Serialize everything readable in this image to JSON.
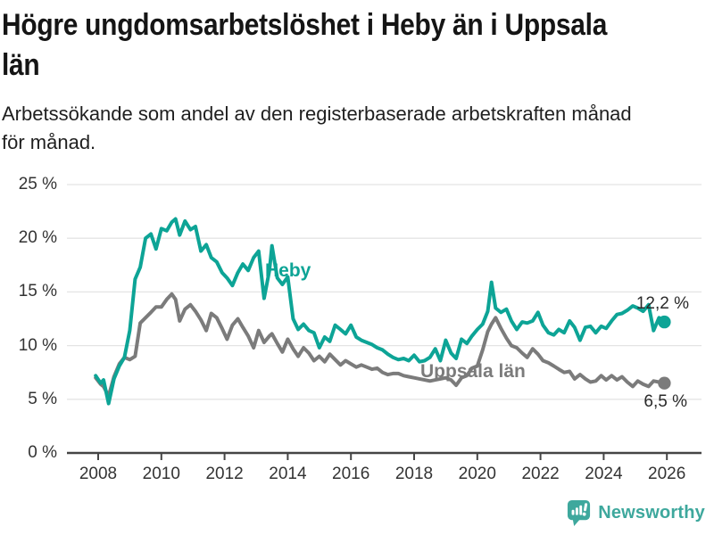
{
  "header": {
    "title": "Högre ungdomsarbetslöshet i Heby än i Uppsala\nlän",
    "subtitle": "Arbetssökande som andel av den registerbaserade arbetskraften månad\nför månad."
  },
  "footer": {
    "brand": "Newsworthy"
  },
  "colors": {
    "heby_teal": "#0da496",
    "uppsala_gray": "#7b7b7b",
    "axis_text": "#333333",
    "gridline": "#e4e4e4",
    "axis_line": "#454545",
    "end_label_text": "#2a2a2a",
    "logo_teal": "#3ea89d",
    "background": "#ffffff"
  },
  "chart_data": {
    "type": "line",
    "title": "Högre ungdomsarbetslöshet i Heby än i Uppsala län",
    "subtitle": "Arbetssökande som andel av den registerbaserade arbetskraften månad för månad.",
    "ylabel": "",
    "xlabel": "",
    "ylim": [
      0,
      25
    ],
    "xlim": [
      2007.9,
      2026.6
    ],
    "grid": "horizontal",
    "legend": "inline-labels",
    "ytick_values": [
      0,
      5,
      10,
      15,
      20,
      25
    ],
    "ytick_labels": [
      "0 %",
      "5 %",
      "10 %",
      "15 %",
      "20 %",
      "25 %"
    ],
    "xtick_values": [
      2008,
      2010,
      2012,
      2014,
      2016,
      2018,
      2020,
      2022,
      2024,
      2026
    ],
    "xtick_labels": [
      "2008",
      "2010",
      "2012",
      "2014",
      "2016",
      "2018",
      "2020",
      "2022",
      "2024",
      "2026"
    ],
    "x": [
      2007.92,
      2008.08,
      2008.17,
      2008.33,
      2008.5,
      2008.67,
      2008.83,
      2009,
      2009.17,
      2009.33,
      2009.5,
      2009.67,
      2009.83,
      2010,
      2010.17,
      2010.33,
      2010.45,
      2010.58,
      2010.75,
      2010.92,
      2011.08,
      2011.25,
      2011.42,
      2011.58,
      2011.75,
      2011.92,
      2012.08,
      2012.25,
      2012.42,
      2012.58,
      2012.75,
      2012.92,
      2013.08,
      2013.25,
      2013.42,
      2013.5,
      2013.67,
      2013.83,
      2014,
      2014.17,
      2014.33,
      2014.5,
      2014.67,
      2014.83,
      2015,
      2015.17,
      2015.33,
      2015.5,
      2015.67,
      2015.83,
      2016,
      2016.17,
      2016.33,
      2016.5,
      2016.67,
      2016.83,
      2017,
      2017.17,
      2017.33,
      2017.5,
      2017.67,
      2017.83,
      2018,
      2018.17,
      2018.33,
      2018.5,
      2018.67,
      2018.83,
      2019,
      2019.17,
      2019.33,
      2019.5,
      2019.67,
      2019.83,
      2020,
      2020.17,
      2020.33,
      2020.45,
      2020.58,
      2020.75,
      2020.92,
      2021.08,
      2021.25,
      2021.42,
      2021.58,
      2021.75,
      2021.92,
      2022.08,
      2022.25,
      2022.42,
      2022.58,
      2022.75,
      2022.92,
      2023.08,
      2023.25,
      2023.42,
      2023.58,
      2023.75,
      2023.92,
      2024.08,
      2024.25,
      2024.42,
      2024.58,
      2024.75,
      2024.92,
      2025.08,
      2025.25,
      2025.42,
      2025.58,
      2025.75,
      2025.92
    ],
    "series": [
      {
        "name": "Heby",
        "color": "#0da496",
        "end_label": "12,2 %",
        "end_value": 12.2,
        "values": [
          7.2,
          6.5,
          6.8,
          4.6,
          6.9,
          8.1,
          8.9,
          11.4,
          16.2,
          17.3,
          20.0,
          20.4,
          19.0,
          20.9,
          20.7,
          21.5,
          21.8,
          20.3,
          21.6,
          20.8,
          21.1,
          18.8,
          19.4,
          18.2,
          17.8,
          16.8,
          16.3,
          15.6,
          16.8,
          17.6,
          17.0,
          18.2,
          18.8,
          14.4,
          17.0,
          19.3,
          16.3,
          15.7,
          16.4,
          12.5,
          11.5,
          12.0,
          11.4,
          11.2,
          9.8,
          10.8,
          10.4,
          11.9,
          11.5,
          11.1,
          11.9,
          10.8,
          10.5,
          10.3,
          10.1,
          9.8,
          9.6,
          9.2,
          8.9,
          8.7,
          8.8,
          8.6,
          9.1,
          8.5,
          8.6,
          8.9,
          9.7,
          8.6,
          10.5,
          9.3,
          8.8,
          10.6,
          10.2,
          10.9,
          11.5,
          12.0,
          13.2,
          15.9,
          13.5,
          13.1,
          13.4,
          12.3,
          11.5,
          12.2,
          12.1,
          12.3,
          13.1,
          11.9,
          11.2,
          11.0,
          11.5,
          11.2,
          12.3,
          11.7,
          10.5,
          11.7,
          11.8,
          11.2,
          11.8,
          11.6,
          12.3,
          12.9,
          13.0,
          13.3,
          13.7,
          13.5,
          13.2,
          13.8,
          11.4,
          12.6,
          12.2
        ]
      },
      {
        "name": "Uppsala län",
        "color": "#7b7b7b",
        "end_label": "6,5 %",
        "end_value": 6.5,
        "values": [
          7.0,
          6.4,
          6.2,
          5.3,
          7.1,
          8.3,
          8.9,
          8.7,
          9.0,
          12.1,
          12.6,
          13.1,
          13.6,
          13.6,
          14.3,
          14.8,
          14.3,
          12.3,
          13.4,
          13.8,
          13.2,
          12.4,
          11.4,
          13.0,
          12.6,
          11.6,
          10.6,
          11.9,
          12.5,
          11.7,
          10.9,
          9.8,
          11.4,
          10.3,
          10.9,
          11.1,
          10.2,
          9.4,
          10.6,
          9.7,
          9.0,
          9.8,
          9.3,
          8.6,
          9.0,
          8.5,
          9.2,
          8.7,
          8.2,
          8.6,
          8.3,
          8.0,
          8.2,
          8.0,
          7.8,
          7.9,
          7.5,
          7.3,
          7.4,
          7.4,
          7.2,
          7.1,
          7.0,
          6.9,
          6.8,
          6.7,
          6.8,
          6.9,
          7.0,
          6.8,
          6.3,
          7.0,
          7.2,
          7.9,
          8.1,
          9.6,
          11.3,
          12.0,
          12.6,
          11.6,
          10.7,
          10.0,
          9.8,
          9.3,
          8.9,
          9.7,
          9.2,
          8.6,
          8.4,
          8.1,
          7.8,
          7.5,
          7.6,
          6.9,
          7.3,
          6.9,
          6.6,
          6.7,
          7.2,
          6.8,
          7.2,
          6.8,
          7.1,
          6.6,
          6.2,
          6.7,
          6.4,
          6.2,
          6.7,
          6.6,
          6.5
        ]
      }
    ]
  }
}
